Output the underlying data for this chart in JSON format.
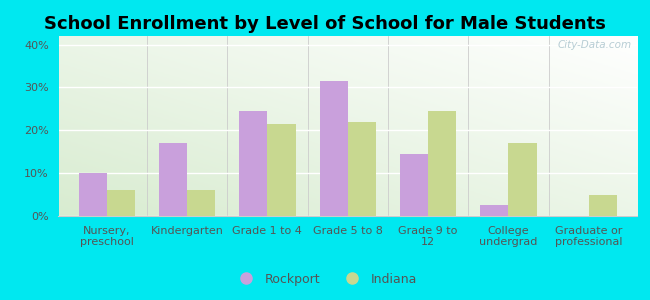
{
  "title": "School Enrollment by Level of School for Male Students",
  "categories": [
    "Nursery,\npreschool",
    "Kindergarten",
    "Grade 1 to 4",
    "Grade 5 to 8",
    "Grade 9 to\n12",
    "College\nundergrad",
    "Graduate or\nprofessional"
  ],
  "rockport": [
    10.0,
    17.0,
    24.5,
    31.5,
    14.5,
    2.5,
    0.0
  ],
  "indiana": [
    6.0,
    6.0,
    21.5,
    22.0,
    24.5,
    17.0,
    5.0
  ],
  "rockport_color": "#c9a0dc",
  "indiana_color": "#c8d890",
  "background_color": "#00e8f0",
  "ylabel_ticks": [
    "0%",
    "10%",
    "20%",
    "30%",
    "40%"
  ],
  "yticks": [
    0,
    10,
    20,
    30,
    40
  ],
  "ylim": [
    0,
    42
  ],
  "legend_rockport": "Rockport",
  "legend_indiana": "Indiana",
  "bar_width": 0.35,
  "title_fontsize": 13,
  "tick_fontsize": 8,
  "legend_fontsize": 9,
  "watermark": "City-Data.com"
}
